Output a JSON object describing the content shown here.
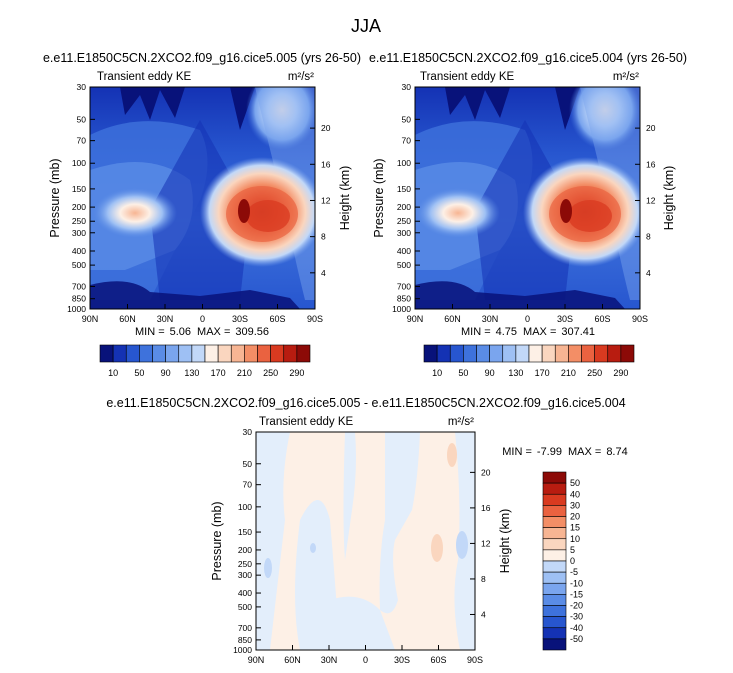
{
  "page_title": "JJA",
  "colors": {
    "div_palette": [
      "#08127a",
      "#1432b4",
      "#2756cf",
      "#3e72dc",
      "#5a8ce6",
      "#7aa5ee",
      "#9ec0f4",
      "#c2d8f8",
      "#e3eefb",
      "#fdf0e6",
      "#fad6bf",
      "#f7b593",
      "#f38e66",
      "#ea6240",
      "#d93a20",
      "#b81c10",
      "#8c0a07"
    ],
    "abs_palette": [
      "#08127a",
      "#1432b4",
      "#2756cf",
      "#3e72dc",
      "#5a8ce6",
      "#7aa5ee",
      "#9ec0f4",
      "#c2d8f8",
      "#e3eefb",
      "#fdf0e6",
      "#fad6bf",
      "#f7b593",
      "#f38e66",
      "#ea6240",
      "#d93a20",
      "#b81c10",
      "#8c0a07"
    ]
  },
  "chart_data": [
    {
      "type": "heatmap",
      "title": "e.e11.E1850C5CN.2XCO2.f09_g16.cice5.005 (yrs 26-50)",
      "subtitle_left": "Transient eddy KE",
      "units": "m²/s²",
      "ylabel": "Pressure (mb)",
      "ylabel_right": "Height (km)",
      "x_ticks": [
        "90N",
        "60N",
        "30N",
        "0",
        "30S",
        "60S",
        "90S"
      ],
      "y_ticks": [
        "30",
        "50",
        "70",
        "100",
        "150",
        "200",
        "250",
        "300",
        "400",
        "500",
        "700",
        "850",
        "1000"
      ],
      "y_ticks_right": [
        "20",
        "16",
        "12",
        "8",
        "4"
      ],
      "min_label": "MIN =",
      "min_value": "5.06",
      "max_label": "MAX =",
      "max_value": "309.56",
      "colorbar_labels": [
        "10",
        "50",
        "90",
        "130",
        "170",
        "210",
        "250",
        "290"
      ],
      "levels": [
        10,
        30,
        50,
        70,
        90,
        110,
        130,
        150,
        170,
        190,
        210,
        230,
        250,
        270,
        290
      ]
    },
    {
      "type": "heatmap",
      "title": "e.e11.E1850C5CN.2XCO2.f09_g16.cice5.004 (yrs 26-50)",
      "subtitle_left": "Transient eddy KE",
      "units": "m²/s²",
      "ylabel": "Pressure (mb)",
      "ylabel_right": "Height (km)",
      "x_ticks": [
        "90N",
        "60N",
        "30N",
        "0",
        "30S",
        "60S",
        "90S"
      ],
      "y_ticks": [
        "30",
        "50",
        "70",
        "100",
        "150",
        "200",
        "250",
        "300",
        "400",
        "500",
        "700",
        "850",
        "1000"
      ],
      "y_ticks_right": [
        "20",
        "16",
        "12",
        "8",
        "4"
      ],
      "min_label": "MIN =",
      "min_value": "4.75",
      "max_label": "MAX =",
      "max_value": "307.41",
      "colorbar_labels": [
        "10",
        "50",
        "90",
        "130",
        "170",
        "210",
        "250",
        "290"
      ],
      "levels": [
        10,
        30,
        50,
        70,
        90,
        110,
        130,
        150,
        170,
        190,
        210,
        230,
        250,
        270,
        290
      ]
    },
    {
      "type": "heatmap",
      "title": "e.e11.E1850C5CN.2XCO2.f09_g16.cice5.005 - e.e11.E1850C5CN.2XCO2.f09_g16.cice5.004",
      "subtitle_left": "Transient eddy KE",
      "units": "m²/s²",
      "ylabel": "Pressure (mb)",
      "ylabel_right": "Height (km)",
      "x_ticks": [
        "90N",
        "60N",
        "30N",
        "0",
        "30S",
        "60S",
        "90S"
      ],
      "y_ticks": [
        "30",
        "50",
        "70",
        "100",
        "150",
        "200",
        "250",
        "300",
        "400",
        "500",
        "700",
        "850",
        "1000"
      ],
      "y_ticks_right": [
        "20",
        "16",
        "12",
        "8",
        "4"
      ],
      "min_label": "MIN =",
      "min_value": "-7.99",
      "max_label": "MAX =",
      "max_value": "8.74",
      "colorbar_labels": [
        "50",
        "40",
        "30",
        "20",
        "15",
        "10",
        "5",
        "0",
        "-5",
        "-10",
        "-15",
        "-20",
        "-30",
        "-40",
        "-50"
      ],
      "levels": [
        -50,
        -40,
        -30,
        -20,
        -15,
        -10,
        -5,
        0,
        5,
        10,
        15,
        20,
        30,
        40,
        50
      ]
    }
  ]
}
